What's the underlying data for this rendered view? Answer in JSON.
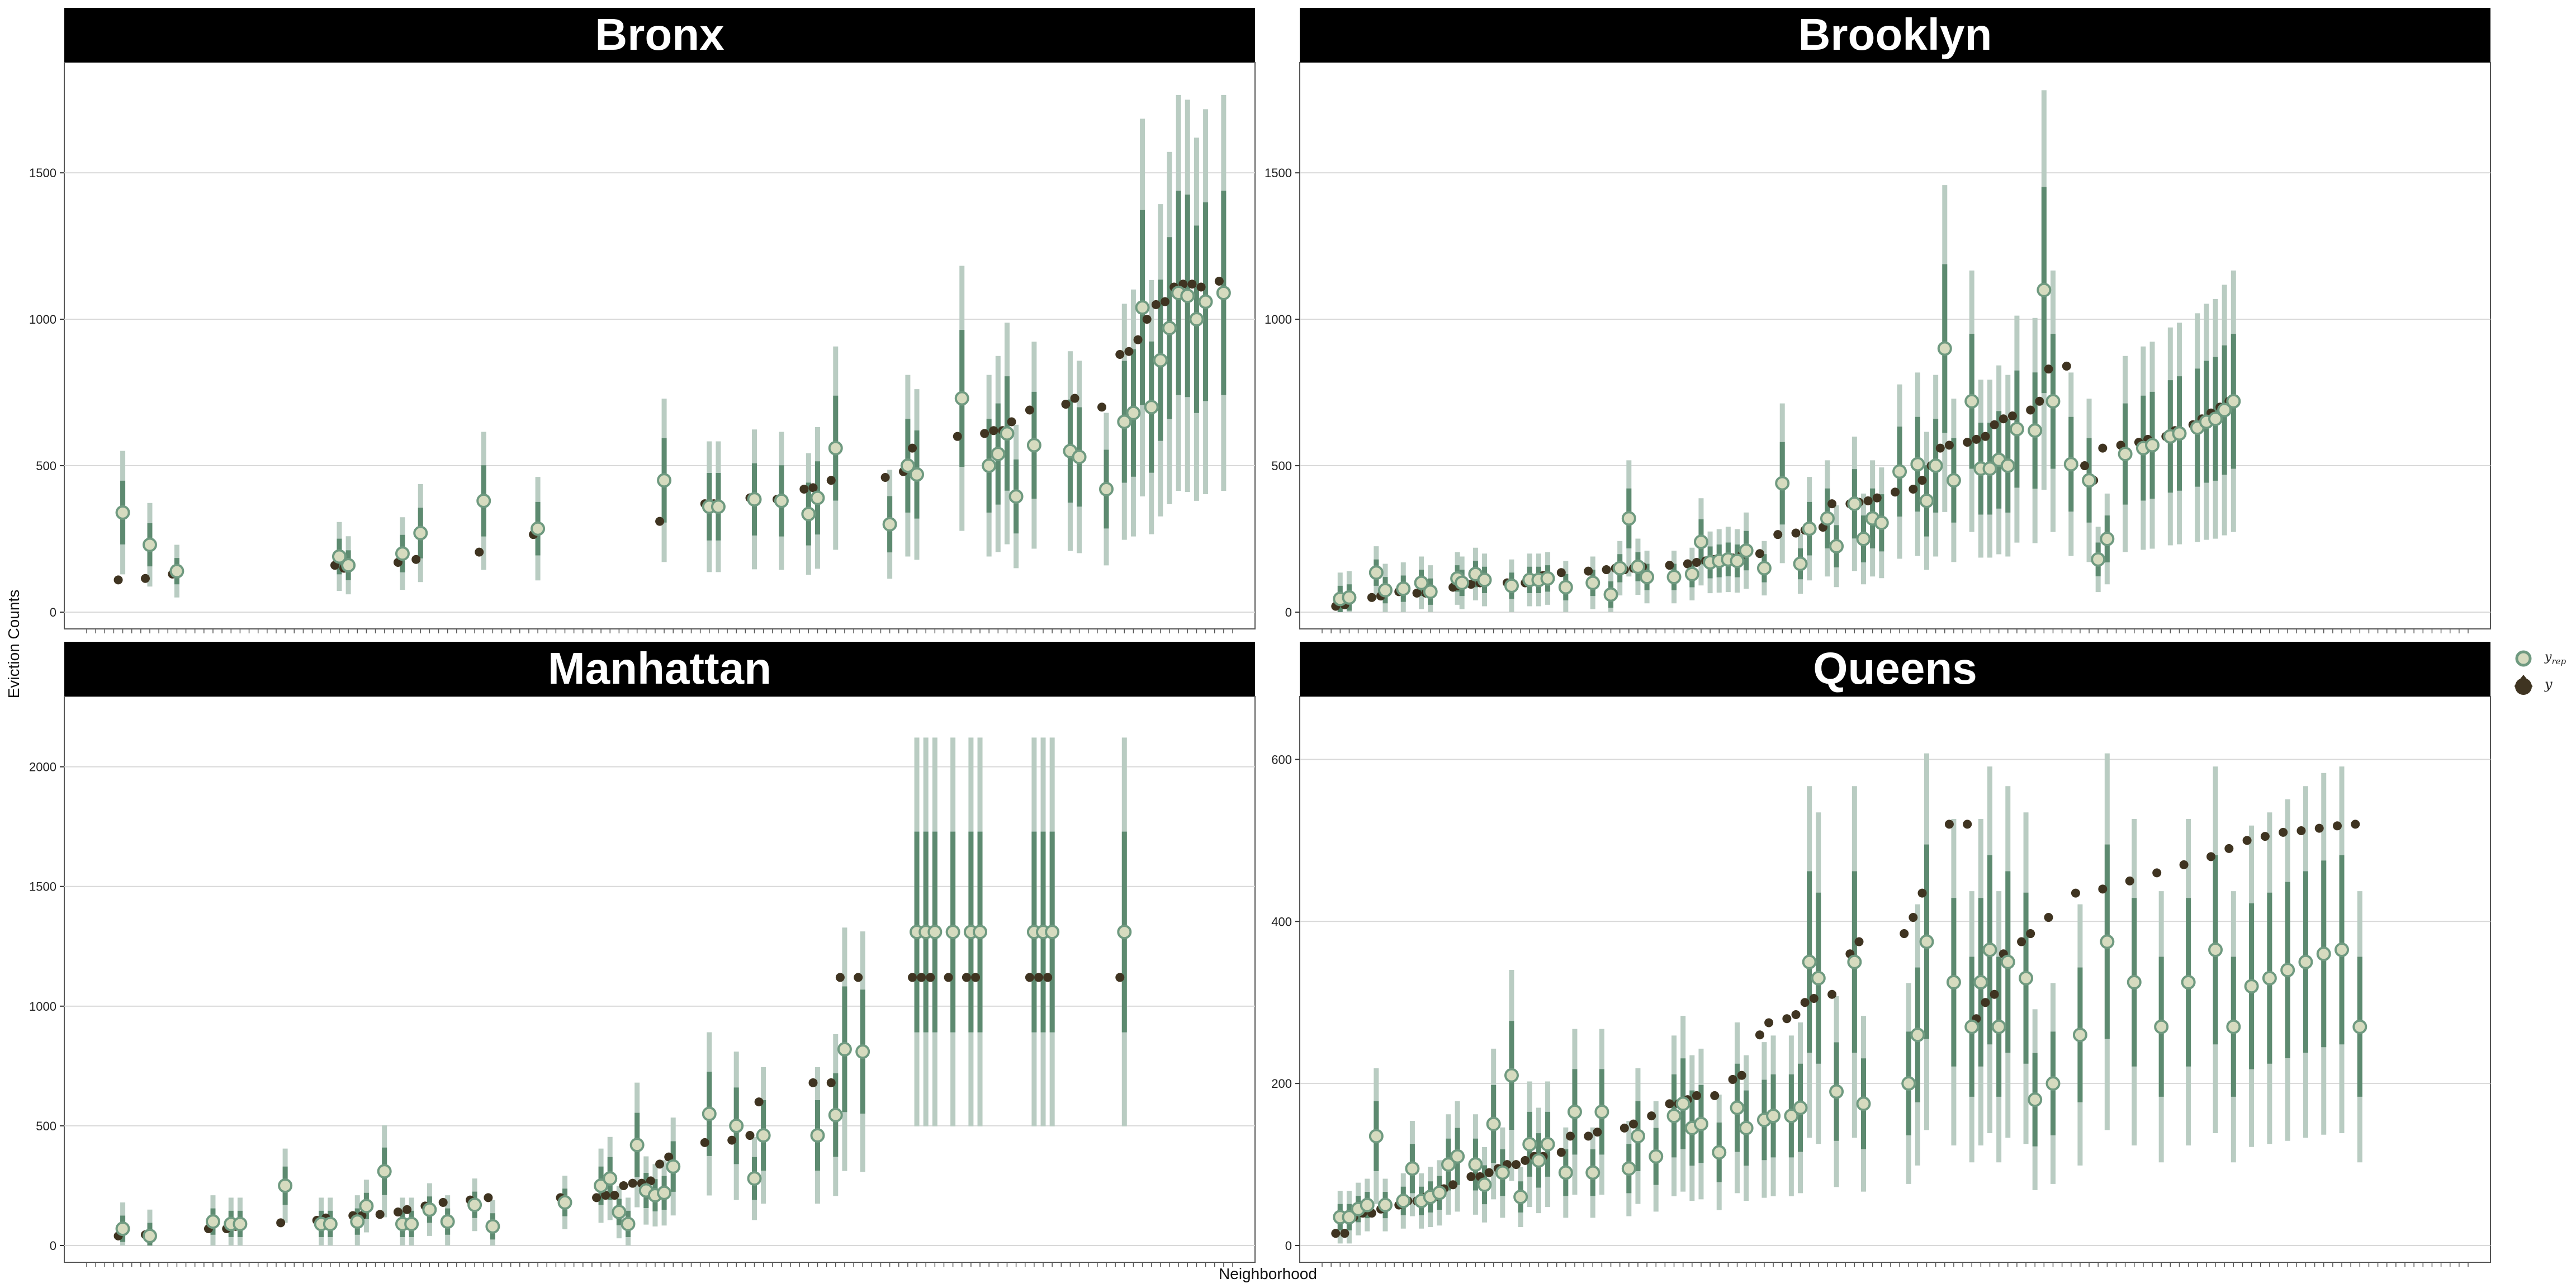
{
  "figure": {
    "xlabel": "Neighborhood",
    "ylabel": "Eviction Counts"
  },
  "legend": {
    "items": [
      {
        "label": "y",
        "sub": "rep",
        "marker": "open-circle"
      },
      {
        "label": "y",
        "sub": "",
        "marker": "filled-dot"
      }
    ]
  },
  "colors": {
    "strip_bg": "#000000",
    "strip_text": "#ffffff",
    "grid": "#d9d9d9",
    "panel_border": "#555555",
    "interval_outer": "#b9ccc2",
    "interval_inner": "#5d8a70",
    "yrep_fill": "#d6dbbf",
    "yrep_stroke": "#6f9a80",
    "y_point": "#3f3421"
  },
  "chart_data": [
    {
      "type": "scatter",
      "title": "Bronx",
      "ylim": [
        0,
        1800
      ],
      "yticks": [
        0,
        500,
        1000,
        1500
      ],
      "n_x": 120,
      "grid": true,
      "series": [
        {
          "name": "yrep",
          "x": [
            5,
            8,
            11,
            29,
            30,
            36,
            38,
            45,
            51,
            65,
            70,
            71,
            75,
            78,
            81,
            82,
            84,
            90,
            92,
            93,
            98,
            101,
            102,
            103,
            104,
            106,
            110,
            111,
            114,
            116,
            117,
            118,
            119,
            120,
            121,
            122,
            123,
            124,
            125,
            127
          ],
          "values": [
            340,
            230,
            140,
            190,
            160,
            200,
            270,
            380,
            285,
            450,
            360,
            360,
            385,
            380,
            335,
            390,
            560,
            300,
            500,
            470,
            730,
            500,
            540,
            610,
            395,
            570,
            550,
            530,
            420,
            650,
            680,
            1040,
            700,
            860,
            970,
            1090,
            1080,
            1000,
            1060,
            1090
          ]
        },
        {
          "name": "y",
          "x": [
            5,
            8,
            11,
            29,
            30,
            36,
            38,
            45,
            51,
            65,
            70,
            71,
            75,
            78,
            81,
            82,
            84,
            90,
            92,
            93,
            98,
            101,
            102,
            103,
            104,
            106,
            110,
            111,
            114,
            116,
            117,
            118,
            119,
            120,
            121,
            122,
            123,
            124,
            125,
            127
          ],
          "values": [
            110,
            115,
            130,
            160,
            150,
            170,
            180,
            205,
            265,
            310,
            370,
            370,
            390,
            385,
            420,
            425,
            450,
            460,
            480,
            560,
            600,
            610,
            620,
            620,
            650,
            690,
            710,
            730,
            700,
            880,
            890,
            930,
            1000,
            1050,
            1060,
            1110,
            1120,
            1120,
            1110,
            1130
          ]
        }
      ]
    },
    {
      "type": "scatter",
      "title": "Brooklyn",
      "ylim": [
        0,
        1800
      ],
      "yticks": [
        0,
        500,
        1000,
        1500
      ],
      "n_x": 120,
      "grid": true,
      "series": [
        {
          "name": "yrep",
          "x": [
            3,
            4,
            7,
            8,
            10,
            12,
            13,
            16,
            16.5,
            18,
            19,
            22,
            24,
            25,
            26,
            28,
            31,
            33,
            34,
            35,
            36,
            37,
            40,
            42,
            43,
            44,
            45,
            46,
            47,
            48,
            50,
            52,
            54,
            55,
            57,
            58,
            60,
            61,
            62,
            63,
            65,
            67,
            68,
            69,
            70,
            71,
            73,
            74,
            75,
            76,
            77,
            78,
            80,
            81,
            82,
            84,
            86,
            87,
            88,
            90,
            92,
            93,
            95,
            96,
            98,
            99,
            100,
            101,
            102
          ],
          "values": [
            45,
            50,
            135,
            75,
            80,
            100,
            70,
            115,
            100,
            130,
            110,
            90,
            110,
            110,
            115,
            85,
            100,
            60,
            150,
            320,
            155,
            120,
            120,
            130,
            240,
            170,
            175,
            180,
            175,
            210,
            150,
            440,
            165,
            285,
            320,
            225,
            370,
            250,
            320,
            305,
            480,
            505,
            380,
            500,
            900,
            450,
            720,
            490,
            490,
            520,
            500,
            625,
            620,
            1100,
            720,
            505,
            450,
            180,
            250,
            540,
            560,
            570,
            600,
            610,
            630,
            650,
            660,
            690,
            720
          ]
        },
        {
          "name": "y",
          "x": [
            3,
            4,
            7,
            8,
            10,
            12,
            13,
            16,
            16.5,
            18,
            19,
            22,
            24,
            25,
            26,
            28,
            31,
            33,
            34,
            35,
            36,
            37,
            40,
            42,
            43,
            44,
            45,
            46,
            47,
            48,
            50,
            52,
            54,
            55,
            57,
            58,
            60,
            61,
            62,
            63,
            65,
            67,
            68,
            69,
            70,
            71,
            73,
            74,
            75,
            76,
            77,
            78,
            80,
            81,
            82,
            84,
            86,
            87,
            88,
            90,
            92,
            93,
            95,
            96,
            98,
            99,
            100,
            101,
            102
          ],
          "values": [
            20,
            25,
            50,
            55,
            70,
            65,
            65,
            85,
            90,
            95,
            100,
            100,
            100,
            115,
            125,
            135,
            140,
            145,
            150,
            145,
            150,
            155,
            160,
            165,
            170,
            175,
            180,
            180,
            185,
            195,
            200,
            265,
            270,
            280,
            290,
            370,
            370,
            375,
            380,
            390,
            410,
            420,
            450,
            500,
            560,
            570,
            580,
            590,
            600,
            640,
            660,
            670,
            690,
            720,
            830,
            840,
            500,
            450,
            560,
            570,
            580,
            590,
            600,
            620,
            640,
            660,
            680,
            700,
            720
          ]
        }
      ]
    },
    {
      "type": "scatter",
      "title": "Manhattan",
      "ylim": [
        0,
        2200
      ],
      "yticks": [
        0,
        500,
        1000,
        1500,
        2000
      ],
      "n_x": 120,
      "grid": true,
      "series": [
        {
          "name": "yrep",
          "x": [
            5,
            8,
            15,
            17,
            18,
            23,
            27,
            28,
            31,
            32,
            34,
            36,
            37,
            39,
            41,
            44,
            46,
            54,
            58,
            59,
            60,
            61,
            62,
            63,
            64,
            65,
            66,
            70,
            73,
            75,
            76,
            82,
            84,
            85,
            87,
            93,
            94,
            95,
            97,
            99,
            100,
            106,
            107,
            108,
            116
          ],
          "values": [
            70,
            40,
            100,
            90,
            90,
            250,
            90,
            90,
            100,
            165,
            310,
            90,
            90,
            150,
            100,
            170,
            80,
            180,
            250,
            280,
            140,
            90,
            420,
            230,
            210,
            220,
            330,
            550,
            500,
            280,
            460,
            460,
            545,
            820,
            810,
            1310,
            1310,
            1310,
            1310,
            1310,
            1310,
            1310,
            1310,
            1310,
            1310
          ]
        },
        {
          "name": "y",
          "x": [
            5,
            8,
            15,
            17,
            18,
            23,
            27,
            28,
            31,
            32,
            34,
            36,
            37,
            39,
            41,
            44,
            46,
            54,
            58,
            59,
            60,
            61,
            62,
            63,
            64,
            65,
            66,
            70,
            73,
            75,
            76,
            82,
            84,
            85,
            87,
            93,
            94,
            95,
            97,
            99,
            100,
            106,
            107,
            108,
            116
          ],
          "values": [
            40,
            45,
            70,
            70,
            80,
            95,
            105,
            115,
            125,
            125,
            130,
            140,
            150,
            165,
            180,
            190,
            200,
            200,
            200,
            210,
            210,
            250,
            260,
            260,
            270,
            340,
            370,
            430,
            440,
            460,
            600,
            680,
            680,
            1120,
            1120,
            1120,
            1120,
            1120,
            1120,
            1120,
            1120,
            1120,
            1120,
            1120,
            1120
          ]
        }
      ]
    },
    {
      "type": "scatter",
      "title": "Queens",
      "ylim": [
        0,
        650
      ],
      "yticks": [
        0,
        200,
        400,
        600
      ],
      "n_x": 120,
      "grid": true,
      "series": [
        {
          "name": "yrep",
          "x": [
            3,
            4,
            5,
            6,
            7,
            8,
            10,
            11,
            12,
            13,
            14,
            15,
            16,
            18,
            19,
            20,
            21,
            22,
            23,
            24,
            25,
            26,
            28,
            29,
            31,
            32,
            35,
            36,
            38,
            40,
            41,
            42,
            43,
            45,
            47,
            48,
            50,
            51,
            53,
            54,
            55,
            56,
            58,
            60,
            61,
            66,
            67,
            68,
            71,
            73,
            74,
            75,
            76,
            77,
            79,
            80,
            82,
            85,
            88,
            91,
            94,
            97,
            100,
            102,
            104,
            106,
            108,
            110,
            112,
            114,
            116
          ],
          "values": [
            35,
            35,
            45,
            50,
            135,
            50,
            55,
            95,
            55,
            60,
            65,
            100,
            110,
            100,
            75,
            150,
            90,
            210,
            60,
            125,
            105,
            125,
            90,
            165,
            90,
            165,
            95,
            135,
            110,
            160,
            175,
            145,
            150,
            115,
            170,
            145,
            155,
            160,
            160,
            170,
            350,
            330,
            190,
            350,
            175,
            200,
            260,
            375,
            325,
            270,
            325,
            365,
            270,
            350,
            330,
            180,
            200,
            260,
            375,
            325,
            270,
            325,
            365,
            270,
            320,
            330,
            340,
            350,
            360,
            365,
            270
          ]
        },
        {
          "name": "y",
          "x": [
            3,
            4,
            5,
            6,
            7,
            8,
            10,
            11,
            12,
            13,
            14,
            15,
            16,
            18,
            19,
            20,
            21,
            22,
            23,
            24,
            25,
            26,
            28,
            29,
            31,
            32,
            35,
            36,
            38,
            40,
            41,
            42,
            43,
            45,
            47,
            48,
            50,
            51,
            53,
            54,
            55,
            56,
            58,
            60,
            61,
            66,
            67,
            68,
            71,
            73,
            74,
            75,
            76,
            77,
            79,
            80,
            82,
            85,
            88,
            91,
            94,
            97,
            100,
            102,
            104,
            106,
            108,
            110,
            112,
            114,
            116
          ],
          "values": [
            15,
            15,
            35,
            40,
            40,
            45,
            50,
            55,
            55,
            60,
            60,
            70,
            75,
            85,
            85,
            90,
            95,
            100,
            100,
            105,
            110,
            110,
            115,
            135,
            135,
            140,
            145,
            150,
            160,
            175,
            175,
            180,
            185,
            185,
            205,
            210,
            260,
            275,
            280,
            285,
            300,
            305,
            310,
            360,
            375,
            385,
            405,
            435,
            520,
            520,
            280,
            300,
            310,
            360,
            375,
            385,
            405,
            435,
            440,
            450,
            460,
            470,
            480,
            490,
            500,
            505,
            510,
            512,
            515,
            518,
            520
          ]
        }
      ]
    }
  ]
}
